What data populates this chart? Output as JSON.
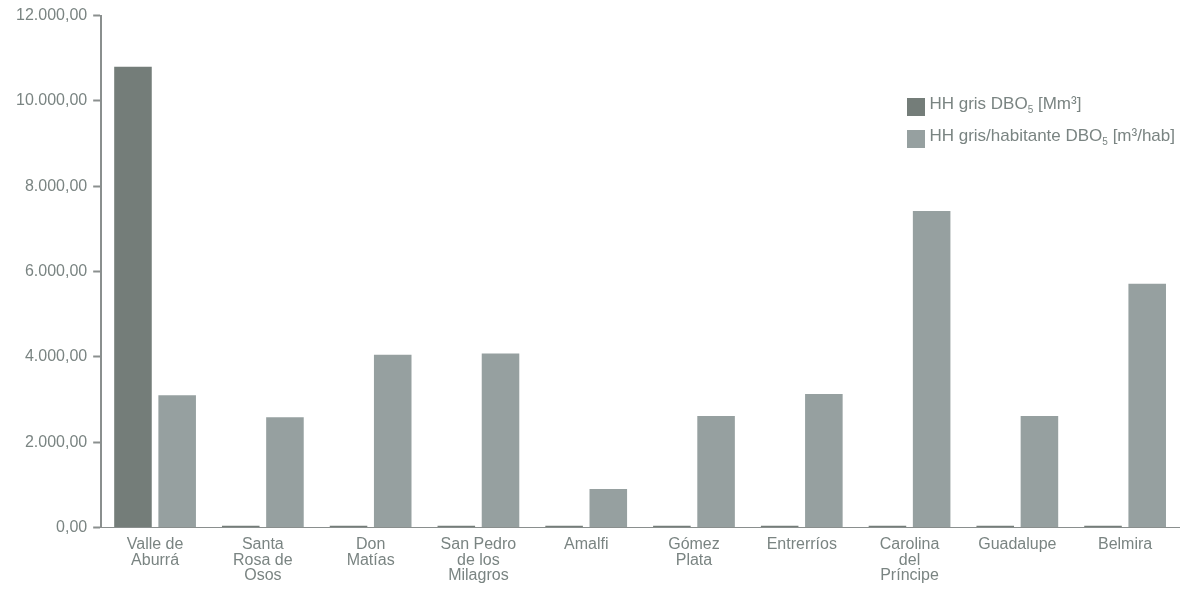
{
  "chart_data": {
    "type": "bar",
    "categories": [
      "Valle de Aburrá",
      "Santa Rosa de Osos",
      "Don Matías",
      "San Pedro de los Milagros",
      "Amalfi",
      "Gómez Plata",
      "Entrerríos",
      "Carolina del Príncipe",
      "Guadalupe",
      "Belmira"
    ],
    "series": [
      {
        "name": "HH gris DBO$_{5}$ [Mm³]",
        "color": "#747d79",
        "values": [
          10800,
          40,
          40,
          40,
          40,
          40,
          40,
          40,
          40,
          40
        ]
      },
      {
        "name": "HH gris/habitante DBO$_{5}$ [m³/hab]",
        "color": "#96a0a0",
        "values": [
          3100,
          2580,
          4050,
          4080,
          900,
          2610,
          3130,
          7420,
          2610,
          5710
        ]
      }
    ],
    "ylim": [
      0,
      12000
    ],
    "yticks": [
      {
        "value": 0,
        "label": "0,00"
      },
      {
        "value": 2000,
        "label": "2.000,00"
      },
      {
        "value": 4000,
        "label": "4.000,00"
      },
      {
        "value": 6000,
        "label": "6.000,00"
      },
      {
        "value": 8000,
        "label": "8.000,00"
      },
      {
        "value": 10000,
        "label": "10.000,00"
      },
      {
        "value": 12000,
        "label": "12.000,00"
      }
    ],
    "grid": false,
    "legend": "top right"
  }
}
